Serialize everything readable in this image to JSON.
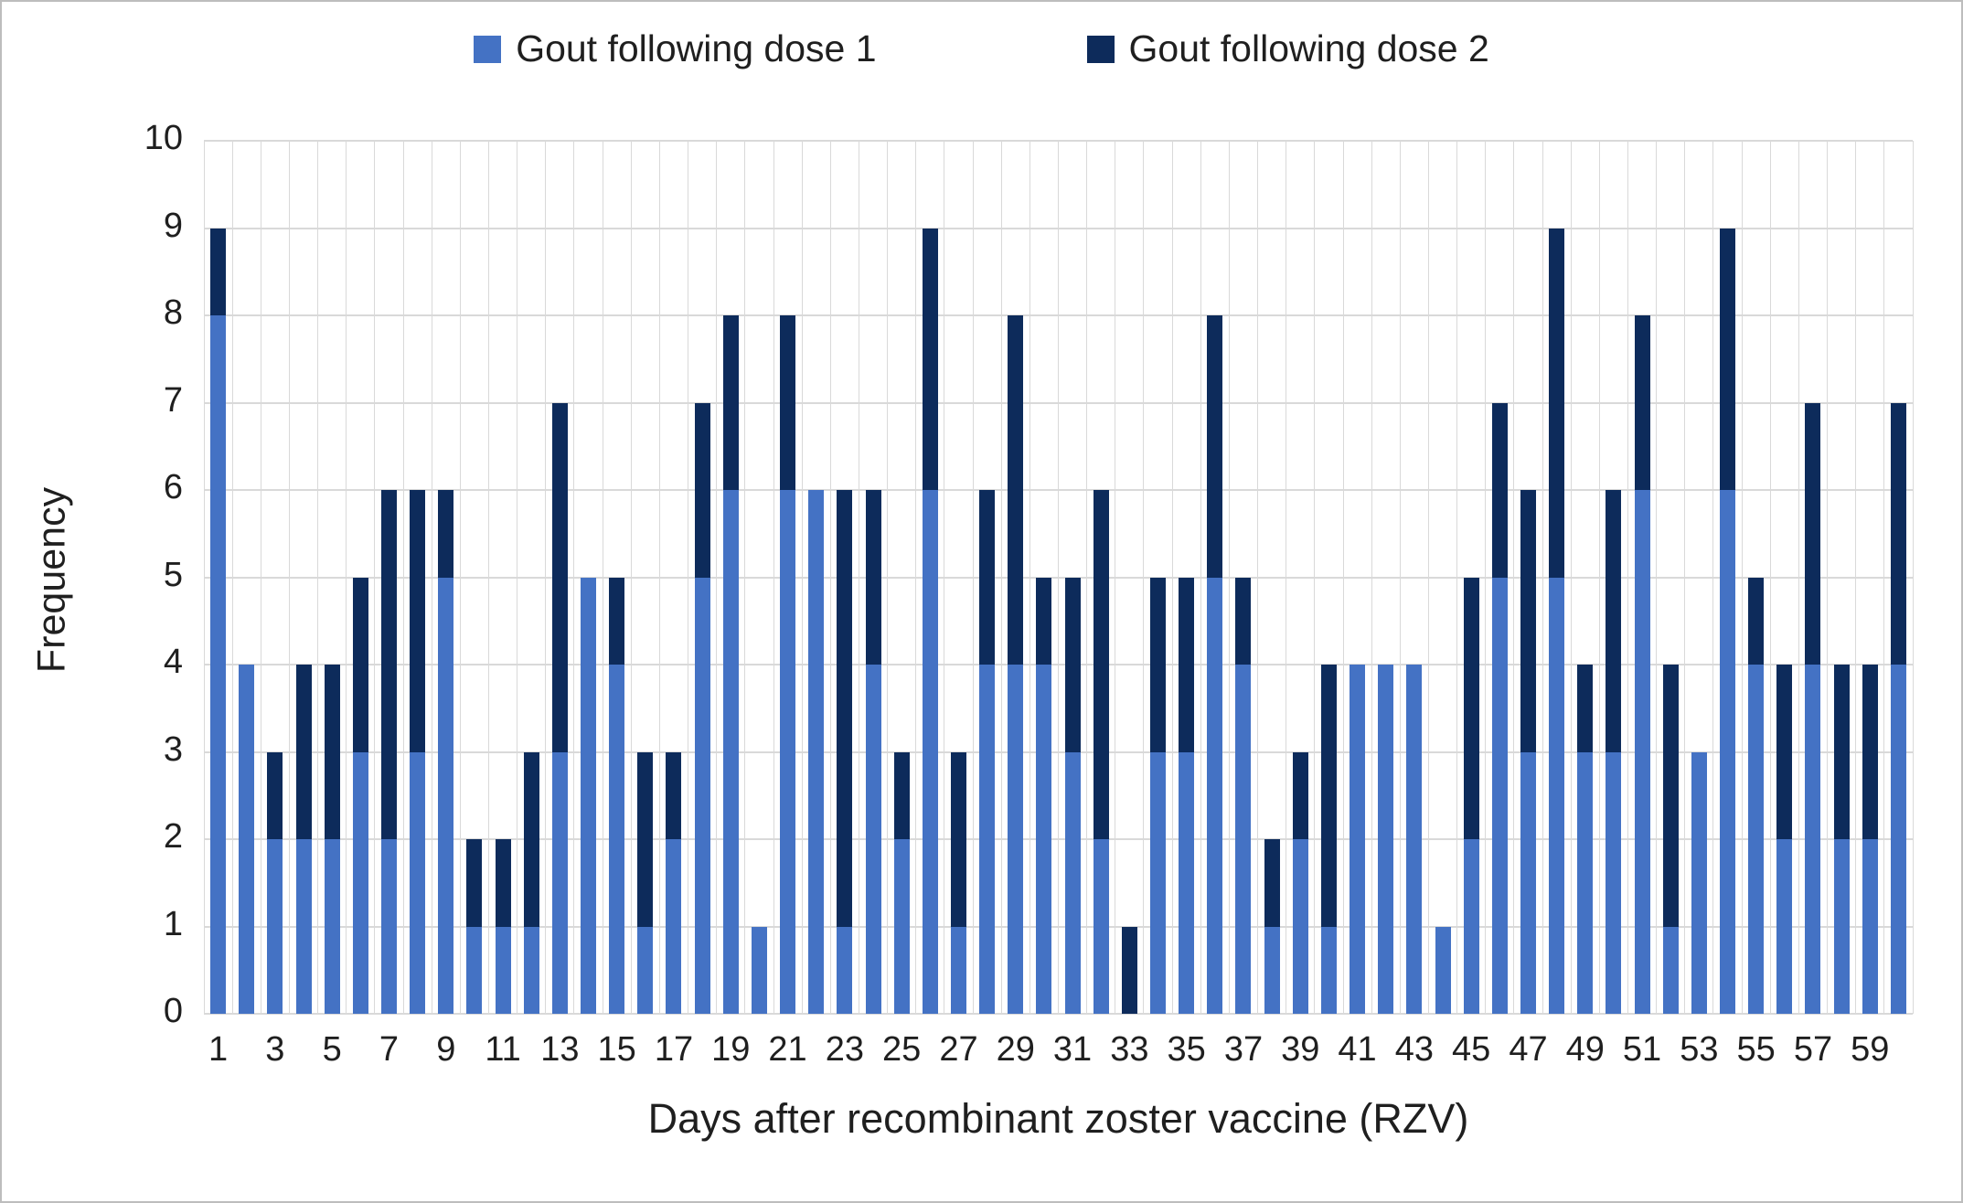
{
  "legend": {
    "dose1": "Gout following dose 1",
    "dose2": "Gout following dose 2"
  },
  "colors": {
    "dose1": "#4472C4",
    "dose2": "#0D2B5B",
    "gridline": "#D9D9D9",
    "text": "#1F1F1F"
  },
  "chart_data": {
    "type": "bar",
    "stacked": true,
    "title": "",
    "xlabel": "Days after recombinant zoster vaccine (RZV)",
    "ylabel": "Frequency",
    "ylim": [
      0,
      10
    ],
    "ytick_interval": 1,
    "grid": "both",
    "legend_position": "top",
    "categories": [
      1,
      2,
      3,
      4,
      5,
      6,
      7,
      8,
      9,
      10,
      11,
      12,
      13,
      14,
      15,
      16,
      17,
      18,
      19,
      20,
      21,
      22,
      23,
      24,
      25,
      26,
      27,
      28,
      29,
      30,
      31,
      32,
      33,
      34,
      35,
      36,
      37,
      38,
      39,
      40,
      41,
      42,
      43,
      44,
      45,
      46,
      47,
      48,
      49,
      50,
      51,
      52,
      53,
      54,
      55,
      56,
      57,
      58,
      59,
      60
    ],
    "xtick_labels": [
      1,
      3,
      5,
      7,
      9,
      11,
      13,
      15,
      17,
      19,
      21,
      23,
      25,
      27,
      29,
      31,
      33,
      35,
      37,
      39,
      41,
      43,
      45,
      47,
      49,
      51,
      53,
      55,
      57,
      59
    ],
    "series": [
      {
        "name": "Gout following dose 1",
        "color": "#4472C4",
        "values": [
          8,
          4,
          2,
          2,
          2,
          3,
          2,
          3,
          5,
          1,
          1,
          1,
          3,
          5,
          4,
          1,
          2,
          5,
          6,
          1,
          6,
          6,
          1,
          4,
          2,
          6,
          1,
          4,
          4,
          4,
          3,
          2,
          0,
          3,
          3,
          5,
          4,
          1,
          2,
          1,
          4,
          4,
          4,
          1,
          2,
          5,
          3,
          5,
          3,
          3,
          6,
          1,
          3,
          6,
          4,
          2,
          4,
          2,
          2,
          4
        ]
      },
      {
        "name": "Gout following dose 2",
        "color": "#0D2B5B",
        "values": [
          1,
          0,
          1,
          2,
          2,
          2,
          4,
          3,
          1,
          1,
          1,
          2,
          4,
          0,
          1,
          2,
          1,
          2,
          2,
          0,
          2,
          0,
          5,
          2,
          1,
          3,
          2,
          2,
          4,
          1,
          2,
          4,
          1,
          2,
          2,
          3,
          1,
          1,
          1,
          3,
          0,
          0,
          0,
          0,
          3,
          2,
          3,
          4,
          1,
          3,
          2,
          3,
          0,
          3,
          1,
          2,
          3,
          2,
          2,
          3
        ]
      }
    ]
  }
}
